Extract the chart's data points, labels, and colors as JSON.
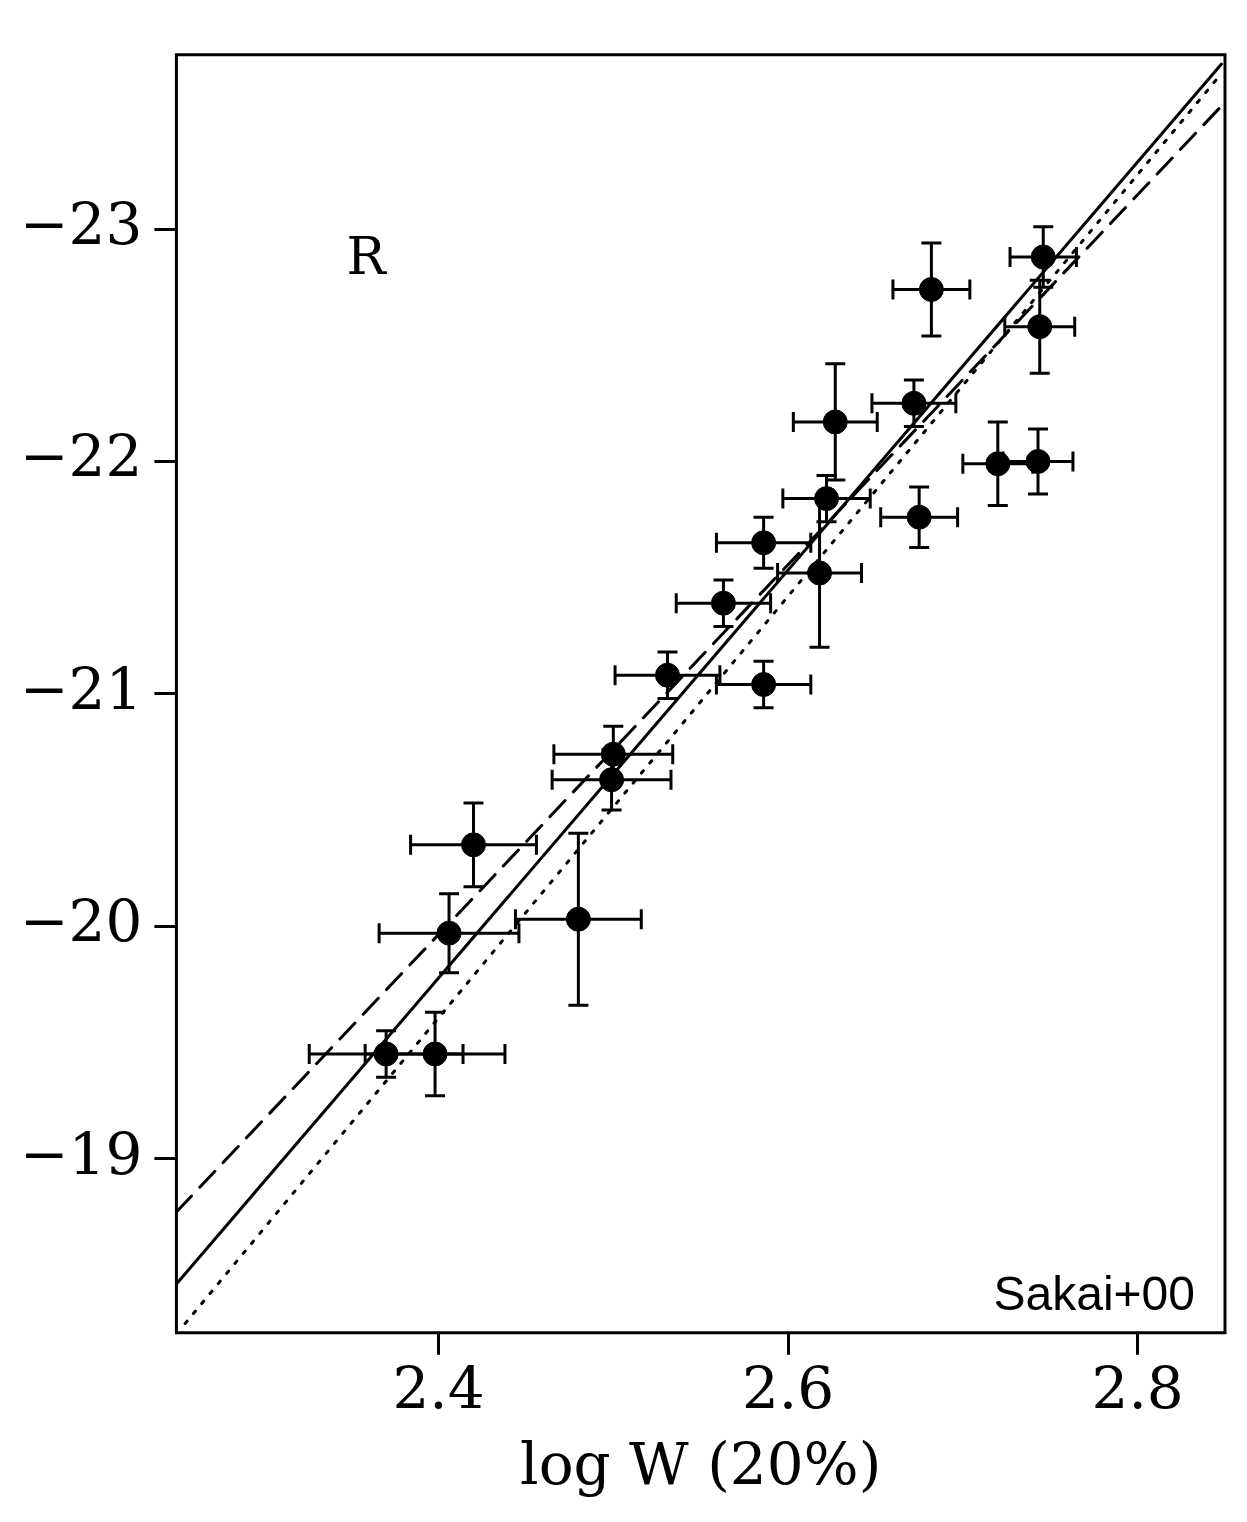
{
  "chart_data": {
    "type": "scatter",
    "xlabel": "log W (20%)",
    "annotations": [
      "R",
      "Sakai+00"
    ],
    "xlim": [
      2.25,
      2.85
    ],
    "ylim": [
      -18.25,
      -23.75
    ],
    "xticks": [
      2.4,
      2.6,
      2.8
    ],
    "yticks": [
      -19,
      -20,
      -21,
      -22,
      -23
    ],
    "grid": false,
    "legend": false,
    "series": [
      {
        "type": "scatter",
        "color": "#000000",
        "marker": "circle",
        "x": [
          2.37,
          2.398,
          2.406,
          2.42,
          2.48,
          2.499,
          2.5,
          2.531,
          2.563,
          2.586,
          2.586,
          2.618,
          2.622,
          2.627,
          2.672,
          2.675,
          2.682,
          2.72,
          2.743,
          2.744,
          2.746
        ],
        "values": [
          -19.45,
          -19.45,
          -19.97,
          -20.35,
          -20.03,
          -20.63,
          -20.74,
          -21.08,
          -21.39,
          -21.04,
          -21.65,
          -21.52,
          -21.84,
          -22.17,
          -22.25,
          -21.76,
          -22.74,
          -21.99,
          -22.0,
          -22.58,
          -22.88
        ],
        "errors": [
          0.1,
          0.18,
          0.17,
          0.18,
          0.37,
          0.13,
          0.12,
          0.1,
          0.1,
          0.1,
          0.11,
          0.32,
          0.1,
          0.25,
          0.1,
          0.13,
          0.2,
          0.18,
          0.14,
          0.2,
          0.13
        ],
        "xerrors": [
          0.044,
          0.04,
          0.04,
          0.036,
          0.036,
          0.034,
          0.034,
          0.03,
          0.027,
          0.027,
          0.027,
          0.024,
          0.025,
          0.024,
          0.024,
          0.022,
          0.022,
          0.02,
          0.02,
          0.02,
          0.019
        ]
      },
      {
        "type": "line",
        "color": "#000000",
        "line_style": "solid",
        "x": [
          2.25,
          2.848
        ],
        "values": [
          -18.46,
          -23.71
        ]
      },
      {
        "type": "line",
        "color": "#000000",
        "line_style": "dashed",
        "x": [
          2.25,
          2.848
        ],
        "values": [
          -18.77,
          -23.53
        ]
      },
      {
        "type": "line",
        "color": "#000000",
        "line_style": "dotted",
        "x": [
          2.255,
          2.848
        ],
        "values": [
          -18.29,
          -23.67
        ]
      }
    ]
  }
}
